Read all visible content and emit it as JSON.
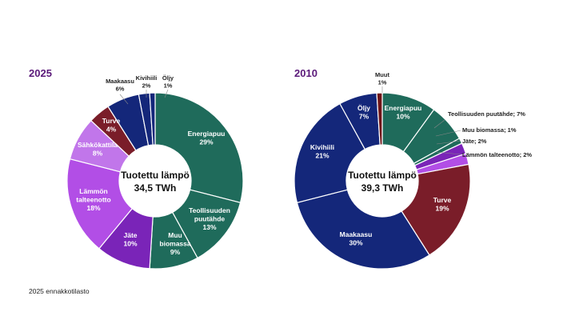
{
  "footnote": "2025 ennakkotilasto",
  "chart_data": [
    {
      "type": "pie",
      "year_title": "2025",
      "center_title": "Tuotettu lämpö",
      "center_value": "34,5 TWh",
      "slices": [
        {
          "name": "Energiapuu",
          "pct_label": "29%",
          "value": 29,
          "color": "#1f6b5b"
        },
        {
          "name": "Teollisuuden puutähde",
          "pct_label": "13%",
          "value": 13,
          "color": "#1f6b5b"
        },
        {
          "name": "Muu biomassa",
          "pct_label": "9%",
          "value": 9,
          "color": "#1f6b5b"
        },
        {
          "name": "Jäte",
          "pct_label": "10%",
          "value": 10,
          "color": "#7a24b8"
        },
        {
          "name": "Lämmön talteenotto",
          "pct_label": "18%",
          "value": 18,
          "color": "#b24ee6"
        },
        {
          "name": "Sähkökattila",
          "pct_label": "8%",
          "value": 8,
          "color": "#c176ea"
        },
        {
          "name": "Turve",
          "pct_label": "4%",
          "value": 4,
          "color": "#7a1d29"
        },
        {
          "name": "Maakaasu",
          "pct_label": "6%",
          "value": 6,
          "color": "#14277a"
        },
        {
          "name": "Kivihiili",
          "pct_label": "2%",
          "value": 2,
          "color": "#14277a"
        },
        {
          "name": "Öljy",
          "pct_label": "1%",
          "value": 1,
          "color": "#14277a"
        }
      ]
    },
    {
      "type": "pie",
      "year_title": "2010",
      "center_title": "Tuotettu lämpö",
      "center_value": "39,3 TWh",
      "slices": [
        {
          "name": "Energiapuu",
          "pct_label": "10%",
          "value": 10,
          "color": "#1f6b5b"
        },
        {
          "name": "Teollisuuden puutähde",
          "pct_label": "7%",
          "value": 7,
          "color": "#1f6b5b"
        },
        {
          "name": "Muu biomassa",
          "pct_label": "1%",
          "value": 1,
          "color": "#1f6b5b"
        },
        {
          "name": "Jäte",
          "pct_label": "2%",
          "value": 2,
          "color": "#7a24b8"
        },
        {
          "name": "Lämmön talteenotto",
          "pct_label": "2%",
          "value": 2,
          "color": "#b24ee6"
        },
        {
          "name": "Turve",
          "pct_label": "19%",
          "value": 19,
          "color": "#7a1d29"
        },
        {
          "name": "Maakaasu",
          "pct_label": "30%",
          "value": 30,
          "color": "#14277a"
        },
        {
          "name": "Kivihiili",
          "pct_label": "21%",
          "value": 21,
          "color": "#14277a"
        },
        {
          "name": "Öljy",
          "pct_label": "7%",
          "value": 7,
          "color": "#14277a"
        },
        {
          "name": "Muut",
          "pct_label": "1%",
          "value": 1,
          "color": "#6e1418"
        }
      ]
    }
  ]
}
